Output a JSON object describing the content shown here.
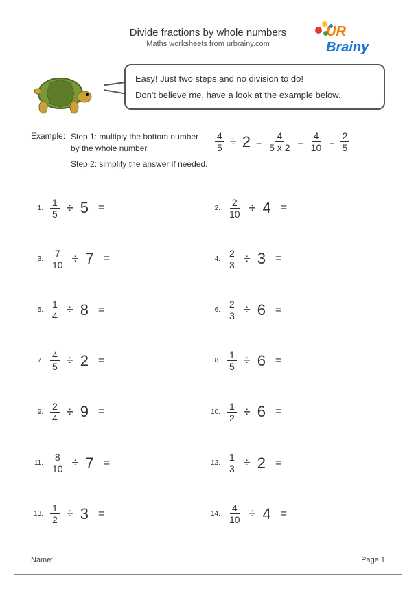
{
  "header": {
    "title": "Divide fractions by whole numbers",
    "subtitle": "Maths worksheets from urbrainy.com"
  },
  "logo": {
    "line1": "UR",
    "line2": "Brainy"
  },
  "speech": {
    "line1": "Easy! Just two steps and no division to do!",
    "line2": "Don't believe me, have a look at the example below."
  },
  "example": {
    "label": "Example:",
    "step1": "Step 1: multiply the bottom number by the whole number.",
    "step2": "Step 2: simplify the answer if needed.",
    "frac1": {
      "num": "4",
      "den": "5"
    },
    "divisor": "2",
    "frac2": {
      "num": "4",
      "den": "5 x 2"
    },
    "frac3": {
      "num": "4",
      "den": "10"
    },
    "frac4": {
      "num": "2",
      "den": "5"
    }
  },
  "problems": [
    {
      "n": "1.",
      "num": "1",
      "den": "5",
      "div": "5"
    },
    {
      "n": "2.",
      "num": "2",
      "den": "10",
      "div": "4"
    },
    {
      "n": "3.",
      "num": "7",
      "den": "10",
      "div": "7"
    },
    {
      "n": "4.",
      "num": "2",
      "den": "3",
      "div": "3"
    },
    {
      "n": "5.",
      "num": "1",
      "den": "4",
      "div": "8"
    },
    {
      "n": "6.",
      "num": "2",
      "den": "3",
      "div": "6"
    },
    {
      "n": "7.",
      "num": "4",
      "den": "5",
      "div": "2"
    },
    {
      "n": "8.",
      "num": "1",
      "den": "5",
      "div": "6"
    },
    {
      "n": "9.",
      "num": "2",
      "den": "4",
      "div": "9"
    },
    {
      "n": "10.",
      "num": "1",
      "den": "2",
      "div": "6"
    },
    {
      "n": "11.",
      "num": "8",
      "den": "10",
      "div": "7"
    },
    {
      "n": "12.",
      "num": "1",
      "den": "3",
      "div": "2"
    },
    {
      "n": "13.",
      "num": "1",
      "den": "2",
      "div": "3"
    },
    {
      "n": "14.",
      "num": "4",
      "den": "10",
      "div": "4"
    }
  ],
  "footer": {
    "name": "Name:",
    "page": "Page 1"
  },
  "symbols": {
    "divide": "÷",
    "equals": "="
  },
  "colors": {
    "text": "#333333",
    "border": "#888888",
    "logo_orange": "#f57c00",
    "logo_blue": "#1976d2",
    "turtle_shell": "#7a9a3a",
    "turtle_body": "#c9a03a"
  }
}
